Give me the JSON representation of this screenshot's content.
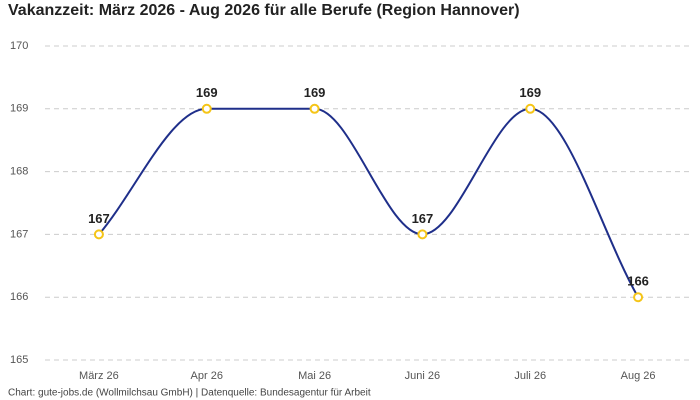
{
  "chart_data": {
    "type": "line",
    "title": "Vakanzzeit: März 2026 - Aug 2026 für alle Berufe (Region Hannover)",
    "source": "Chart: gute-jobs.de (Wollmilchsau GmbH) | Datenquelle: Bundesagentur für Arbeit",
    "categories": [
      "März 26",
      "Apr 26",
      "Mai 26",
      "Juni 26",
      "Juli 26",
      "Aug 26"
    ],
    "values": [
      167,
      169,
      169,
      167,
      169,
      166
    ],
    "color": "#1f2f8a",
    "point_color": "#f5c518",
    "ylim": [
      165,
      170
    ],
    "yticks": [
      165,
      166,
      167,
      168,
      169,
      170
    ],
    "grid": true
  }
}
